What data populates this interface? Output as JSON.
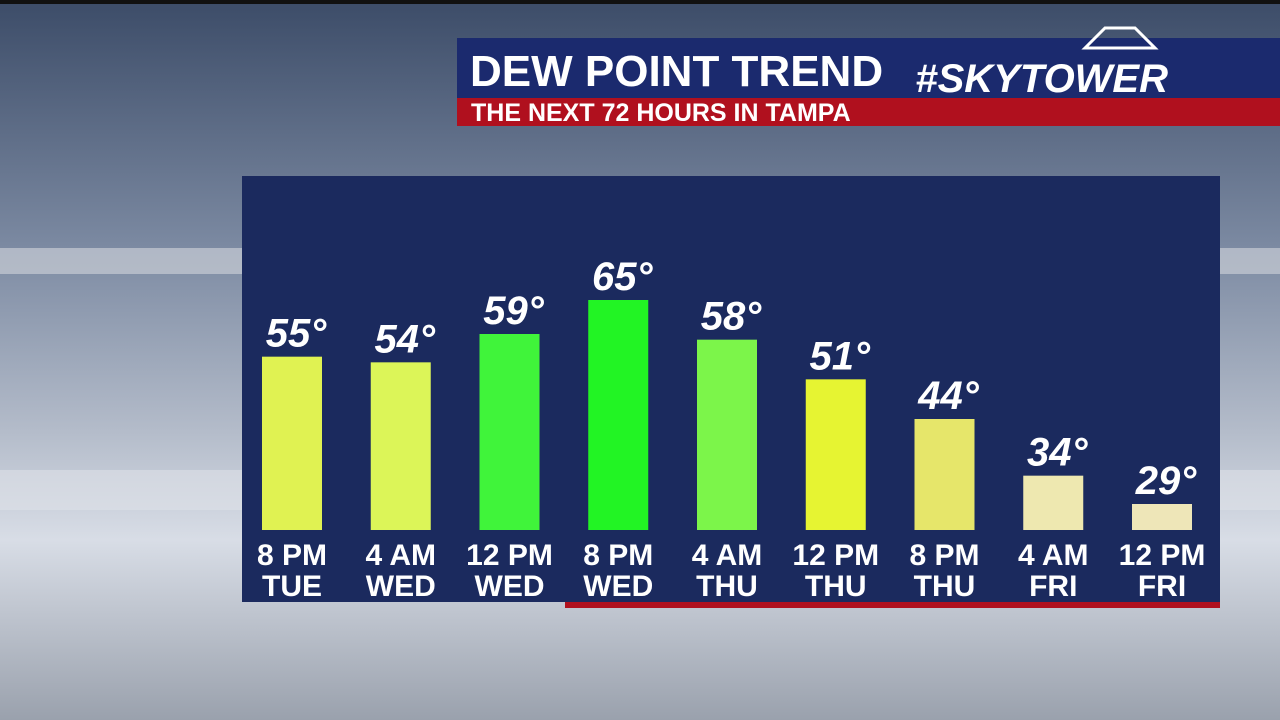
{
  "chart_data": {
    "type": "bar",
    "title": "DEW POINT TREND",
    "subtitle": "THE NEXT 72 HOURS IN TAMPA",
    "brand": "#SKYTOWER",
    "categories": [
      [
        "8 PM",
        "TUE"
      ],
      [
        "4 AM",
        "WED"
      ],
      [
        "12 PM",
        "WED"
      ],
      [
        "8 PM",
        "WED"
      ],
      [
        "4 AM",
        "THU"
      ],
      [
        "12 PM",
        "THU"
      ],
      [
        "8 PM",
        "THU"
      ],
      [
        "4 AM",
        "FRI"
      ],
      [
        "12 PM",
        "FRI"
      ]
    ],
    "values": [
      55,
      54,
      59,
      65,
      58,
      51,
      44,
      34,
      29
    ],
    "value_labels": [
      "55°",
      "54°",
      "59°",
      "65°",
      "58°",
      "51°",
      "44°",
      "34°",
      "29°"
    ],
    "colors": [
      "#e0f252",
      "#dcf558",
      "#40f43a",
      "#22f424",
      "#7cf54a",
      "#e6f432",
      "#e6e66a",
      "#eee8b0",
      "#eee6b8"
    ]
  }
}
